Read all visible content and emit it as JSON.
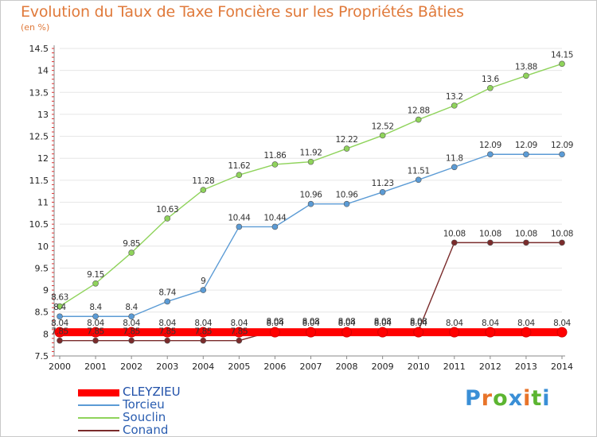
{
  "header": {
    "title": "Evolution du Taux de Taxe Foncière sur les Propriétés Bâties",
    "subtitle": "(en %)"
  },
  "brand": {
    "logo_text": "Proxiti",
    "letter_colors": [
      "#3a8fd6",
      "#e8742a",
      "#5cb531",
      "#3a8fd6",
      "#e8742a",
      "#5cb531",
      "#3a8fd6"
    ]
  },
  "chart_data": {
    "type": "line",
    "title": "Evolution du Taux de Taxe Foncière sur les Propriétés Bâties",
    "ylabel": "(en %)",
    "x": [
      "2000",
      "2001",
      "2002",
      "2003",
      "2004",
      "2005",
      "2006",
      "2007",
      "2008",
      "2009",
      "2010",
      "2011",
      "2012",
      "2013",
      "2014"
    ],
    "ylim": [
      7.5,
      14.5
    ],
    "yticks": [
      "7.5",
      "8",
      "8.5",
      "9",
      "9.5",
      "10",
      "10.5",
      "11",
      "11.5",
      "12",
      "12.5",
      "13",
      "13.5",
      "14",
      "14.5"
    ],
    "grid": "horizontal",
    "series": [
      {
        "name": "CLEYZIEU",
        "color": "#ff0000",
        "values": [
          8.04,
          8.04,
          8.04,
          8.04,
          8.04,
          8.04,
          8.04,
          8.04,
          8.04,
          8.04,
          8.04,
          8.04,
          8.04,
          8.04,
          8.04
        ],
        "labels": [
          "8.04",
          "8.04",
          "8.04",
          "8.04",
          "8.04",
          "8.04",
          "8.04",
          "8.04",
          "8.04",
          "8.04",
          "8.04",
          "8.04",
          "8.04",
          "8.04",
          "8.04"
        ]
      },
      {
        "name": "Torcieu",
        "color": "#5b9bd5",
        "values": [
          8.4,
          8.4,
          8.4,
          8.74,
          9,
          10.44,
          10.44,
          10.96,
          10.96,
          11.23,
          11.51,
          11.8,
          12.09,
          12.09,
          12.09
        ],
        "labels": [
          "8.4",
          "8.4",
          "8.4",
          "8.74",
          "9",
          "10.44",
          "10.44",
          "10.96",
          "10.96",
          "11.23",
          "11.51",
          "11.8",
          "12.09",
          "12.09",
          "12.09"
        ]
      },
      {
        "name": "Souclin",
        "color": "#8fd35b",
        "values": [
          8.63,
          9.15,
          9.85,
          10.63,
          11.28,
          11.62,
          11.86,
          11.92,
          12.22,
          12.52,
          12.88,
          13.2,
          13.6,
          13.88,
          14.15
        ],
        "labels": [
          "8.63",
          "9.15",
          "9.85",
          "10.63",
          "11.28",
          "11.62",
          "11.86",
          "11.92",
          "12.22",
          "12.52",
          "12.88",
          "13.2",
          "13.6",
          "13.88",
          "14.15"
        ]
      },
      {
        "name": "Conand",
        "color": "#7a2b2b",
        "values": [
          7.85,
          7.85,
          7.85,
          7.85,
          7.85,
          7.85,
          8.08,
          8.08,
          8.08,
          8.08,
          8.08,
          10.08,
          10.08,
          10.08,
          10.08
        ],
        "labels": [
          "7.85",
          "7.85",
          "7.85",
          "7.85",
          "7.85",
          "7.85",
          "8.08",
          "8.08",
          "8.08",
          "8.08",
          "8.08",
          "10.08",
          "10.08",
          "10.08",
          "10.08"
        ]
      }
    ],
    "legend": "bottom-left"
  }
}
